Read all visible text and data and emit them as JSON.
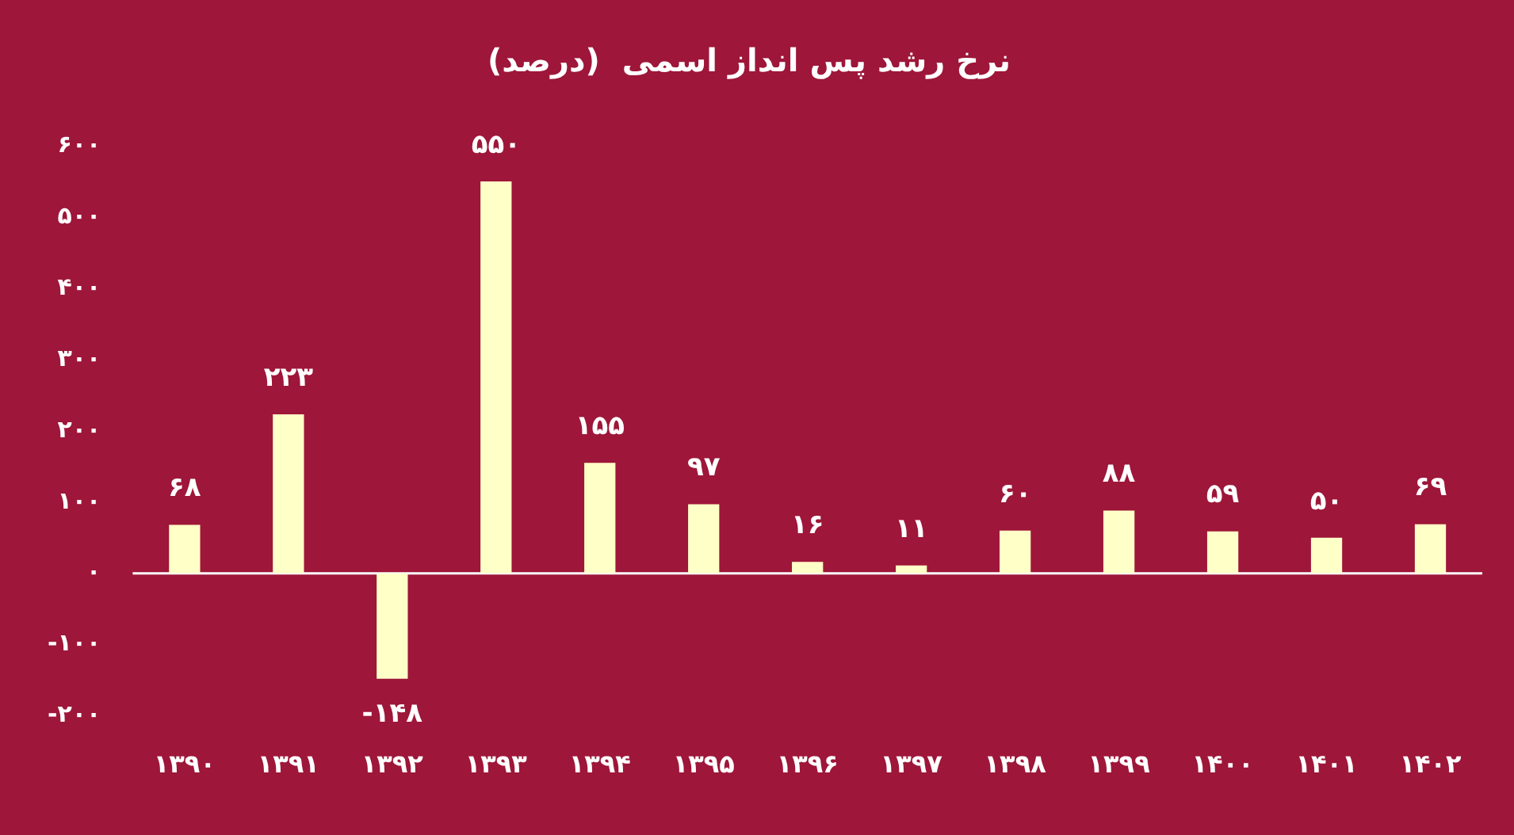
{
  "chart_data": {
    "type": "bar",
    "title": "نرخ رشد پس انداز اسمی  (درصد)",
    "categories": [
      "۱۳۹۰",
      "۱۳۹۱",
      "۱۳۹۲",
      "۱۳۹۳",
      "۱۳۹۴",
      "۱۳۹۵",
      "۱۳۹۶",
      "۱۳۹۷",
      "۱۳۹۸",
      "۱۳۹۹",
      "۱۴۰۰",
      "۱۴۰۱",
      "۱۴۰۲"
    ],
    "values": [
      68,
      223,
      -148,
      550,
      155,
      97,
      16,
      11,
      60,
      88,
      59,
      50,
      69
    ],
    "value_labels": [
      "۶۸",
      "۲۲۳",
      "-۱۴۸",
      "۵۵۰",
      "۱۵۵",
      "۹۷",
      "۱۶",
      "۱۱",
      "۶۰",
      "۸۸",
      "۵۹",
      "۵۰",
      "۶۹"
    ],
    "color": "#ffffc8",
    "ylim": [
      -200,
      600
    ],
    "yticks": [
      {
        "value": -200,
        "label": "-۲۰۰"
      },
      {
        "value": -100,
        "label": "-۱۰۰"
      },
      {
        "value": 0,
        "label": "۰"
      },
      {
        "value": 100,
        "label": "۱۰۰"
      },
      {
        "value": 200,
        "label": "۲۰۰"
      },
      {
        "value": 300,
        "label": "۳۰۰"
      },
      {
        "value": 400,
        "label": "۴۰۰"
      },
      {
        "value": 500,
        "label": "۵۰۰"
      },
      {
        "value": 600,
        "label": "۶۰۰"
      }
    ],
    "ref_lines": [
      {
        "axis": "y",
        "value": 0,
        "color": "#ffffff"
      }
    ],
    "grid": false,
    "legend": false
  }
}
